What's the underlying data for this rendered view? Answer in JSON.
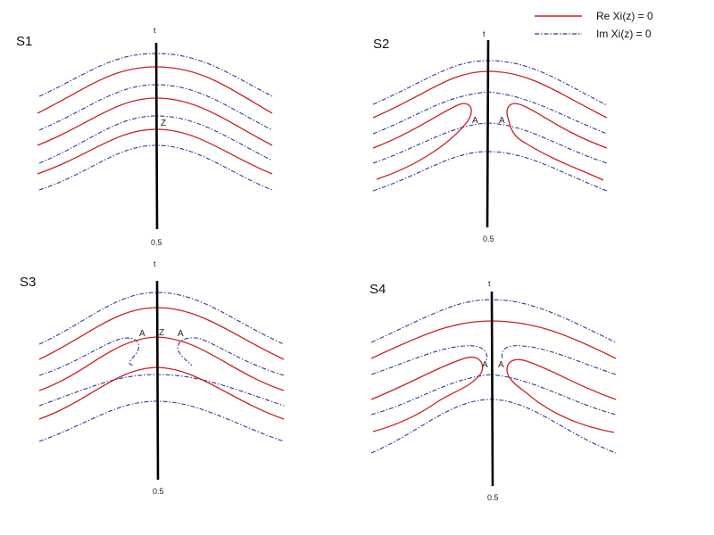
{
  "legend": {
    "re_label": "Re Xi(z) = 0",
    "im_label": "Im Xi(z) = 0",
    "re_color": "#cc1f1f",
    "im_color": "#2c3a99"
  },
  "panels": [
    {
      "title": "S1",
      "axis_top_label": "t",
      "axis_bottom_label": "0.5",
      "point_labels": [
        "Z"
      ]
    },
    {
      "title": "S2",
      "axis_top_label": "t",
      "axis_bottom_label": "0.5",
      "point_labels": [
        "A",
        "A"
      ]
    },
    {
      "title": "S3",
      "axis_top_label": "t",
      "axis_bottom_label": "0.5",
      "point_labels": [
        "A",
        "Z",
        "A"
      ]
    },
    {
      "title": "S4",
      "axis_top_label": "t",
      "axis_bottom_label": "0.5",
      "point_labels": [
        "A",
        "A"
      ]
    }
  ]
}
